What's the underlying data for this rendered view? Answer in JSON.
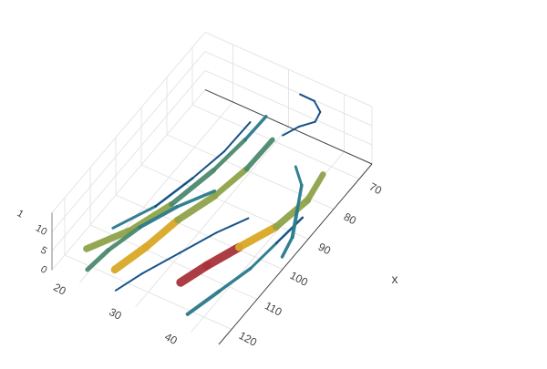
{
  "chart_data": {
    "type": "streamtube",
    "title": "",
    "colors": {
      "tube_dark": "#0b4a82",
      "tube_teal": "#2a7a8c",
      "tube_mid": "#4c8a6e",
      "tube_olive": "#8fa34a",
      "tube_yellow": "#d9a927",
      "tube_red": "#a8333a",
      "grid": "#e5e5e5",
      "axis_line": "#444444",
      "tick_text": "#444444"
    },
    "axes": {
      "x": {
        "title": "x",
        "range": [
          65,
          125
        ],
        "ticks": [
          70,
          80,
          90,
          100,
          110,
          120
        ]
      },
      "y": {
        "title": "",
        "range": [
          15,
          45
        ],
        "ticks": [
          20,
          30,
          40
        ]
      },
      "z": {
        "title": "",
        "range": [
          0,
          15
        ],
        "ticks": [
          0,
          5,
          10
        ],
        "partial_tick_text": "1"
      }
    },
    "tubes": [
      {
        "points": [
          [
            118,
            18,
            2
          ],
          [
            110,
            22,
            3
          ],
          [
            100,
            25,
            4
          ],
          [
            90,
            28,
            7
          ],
          [
            82,
            30,
            10
          ],
          [
            76,
            31,
            12
          ]
        ],
        "size": [
          8,
          7,
          6,
          5,
          4,
          3
        ]
      },
      {
        "points": [
          [
            120,
            24,
            2
          ],
          [
            112,
            26,
            3
          ],
          [
            104,
            28,
            5
          ],
          [
            96,
            31,
            7
          ],
          [
            88,
            33,
            9
          ],
          [
            80,
            34,
            11
          ]
        ],
        "size": [
          9,
          8,
          8,
          7,
          6,
          5
        ]
      },
      {
        "points": [
          [
            122,
            20,
            1
          ],
          [
            116,
            21,
            2
          ],
          [
            108,
            23,
            3
          ],
          [
            100,
            26,
            4
          ],
          [
            94,
            30,
            6
          ]
        ],
        "size": [
          5,
          5,
          4,
          4,
          3
        ]
      },
      {
        "points": [
          [
            116,
            34,
            2
          ],
          [
            110,
            36,
            3
          ],
          [
            104,
            39,
            5
          ],
          [
            96,
            42,
            6
          ],
          [
            88,
            44,
            8
          ],
          [
            82,
            44,
            10
          ]
        ],
        "size": [
          9,
          10,
          9,
          8,
          7,
          6
        ]
      },
      {
        "points": [
          [
            122,
            38,
            1
          ],
          [
            114,
            40,
            2
          ],
          [
            106,
            42,
            3
          ],
          [
            98,
            43,
            4
          ],
          [
            90,
            44,
            5
          ]
        ],
        "size": [
          4,
          4,
          3,
          3,
          2
        ]
      },
      {
        "points": [
          [
            112,
            20,
            4
          ],
          [
            104,
            24,
            6
          ],
          [
            96,
            27,
            9
          ],
          [
            88,
            29,
            11
          ],
          [
            80,
            30,
            13
          ]
        ],
        "size": [
          3,
          3,
          2,
          2,
          2
        ]
      },
      {
        "points": [
          [
            98,
            44,
            1
          ],
          [
            94,
            44,
            3
          ],
          [
            90,
            43,
            6
          ],
          [
            86,
            42,
            9
          ],
          [
            84,
            40,
            11
          ]
        ],
        "size": [
          3,
          4,
          4,
          3,
          3
        ]
      },
      {
        "points": [
          [
            124,
            26,
            1
          ],
          [
            118,
            28,
            2
          ],
          [
            110,
            31,
            3
          ],
          [
            102,
            34,
            4
          ],
          [
            96,
            37,
            5
          ]
        ],
        "size": [
          2,
          2,
          2,
          2,
          2
        ]
      },
      {
        "points": [
          [
            76,
            34,
            9
          ],
          [
            74,
            36,
            11
          ],
          [
            72,
            38,
            12
          ],
          [
            70,
            38,
            13
          ],
          [
            68,
            36,
            13
          ],
          [
            67,
            33,
            12
          ]
        ],
        "size": [
          2,
          2,
          2,
          2,
          2,
          2
        ]
      }
    ]
  }
}
